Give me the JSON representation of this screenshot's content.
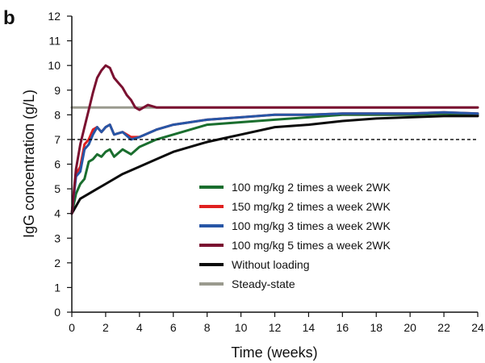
{
  "panel_label": "b",
  "chart_data": {
    "type": "line",
    "xlabel": "Time (weeks)",
    "ylabel": "IgG concentration (g/L)",
    "xlim": [
      0,
      24
    ],
    "ylim": [
      0,
      12
    ],
    "x_ticks": [
      0,
      2,
      4,
      6,
      8,
      10,
      12,
      14,
      16,
      18,
      20,
      22,
      24
    ],
    "y_ticks": [
      0,
      1,
      2,
      3,
      4,
      5,
      6,
      7,
      8,
      9,
      10,
      11,
      12
    ],
    "grid": false,
    "legend_position": "lower-right",
    "reference_line": {
      "y": 7,
      "style": "dashed",
      "color": "#000000"
    },
    "series": [
      {
        "name": "100 mg/kg 2 times a week 2WK",
        "color": "#1a6e2e",
        "points": [
          [
            0,
            4
          ],
          [
            0.25,
            4.8
          ],
          [
            0.5,
            5.2
          ],
          [
            0.75,
            5.4
          ],
          [
            1,
            6.1
          ],
          [
            1.25,
            6.2
          ],
          [
            1.5,
            6.4
          ],
          [
            1.75,
            6.3
          ],
          [
            2,
            6.5
          ],
          [
            2.25,
            6.6
          ],
          [
            2.5,
            6.3
          ],
          [
            3,
            6.6
          ],
          [
            3.5,
            6.4
          ],
          [
            4,
            6.7
          ],
          [
            5,
            7.0
          ],
          [
            6,
            7.2
          ],
          [
            8,
            7.6
          ],
          [
            10,
            7.7
          ],
          [
            12,
            7.8
          ],
          [
            14,
            7.9
          ],
          [
            16,
            8.0
          ],
          [
            18,
            8.0
          ],
          [
            20,
            8.0
          ],
          [
            22,
            8.05
          ],
          [
            24,
            8.0
          ]
        ]
      },
      {
        "name": "150 mg/kg 2 times a week 2WK",
        "color": "#e0201f",
        "points": [
          [
            0,
            4
          ],
          [
            0.25,
            5.6
          ],
          [
            0.5,
            5.9
          ],
          [
            0.75,
            6.8
          ],
          [
            1,
            7.0
          ],
          [
            1.25,
            7.4
          ],
          [
            1.5,
            7.5
          ],
          [
            1.75,
            7.3
          ],
          [
            2,
            7.5
          ],
          [
            2.25,
            7.6
          ],
          [
            2.5,
            7.2
          ],
          [
            3,
            7.3
          ],
          [
            3.5,
            7.1
          ],
          [
            4,
            7.1
          ],
          [
            5,
            7.4
          ],
          [
            6,
            7.6
          ],
          [
            8,
            7.8
          ],
          [
            10,
            7.9
          ],
          [
            12,
            8.0
          ],
          [
            14,
            8.0
          ],
          [
            16,
            8.05
          ],
          [
            18,
            8.05
          ],
          [
            20,
            8.05
          ],
          [
            22,
            8.1
          ],
          [
            24,
            8.05
          ]
        ]
      },
      {
        "name": "100 mg/kg 3 times a week 2WK",
        "color": "#2756a6",
        "points": [
          [
            0,
            4
          ],
          [
            0.25,
            5.5
          ],
          [
            0.5,
            5.7
          ],
          [
            0.75,
            6.6
          ],
          [
            1,
            6.8
          ],
          [
            1.25,
            7.2
          ],
          [
            1.5,
            7.5
          ],
          [
            1.75,
            7.3
          ],
          [
            2,
            7.5
          ],
          [
            2.25,
            7.6
          ],
          [
            2.5,
            7.2
          ],
          [
            3,
            7.3
          ],
          [
            3.5,
            7.0
          ],
          [
            4,
            7.1
          ],
          [
            5,
            7.4
          ],
          [
            6,
            7.6
          ],
          [
            8,
            7.8
          ],
          [
            10,
            7.9
          ],
          [
            12,
            8.0
          ],
          [
            14,
            8.0
          ],
          [
            16,
            8.05
          ],
          [
            18,
            8.05
          ],
          [
            20,
            8.05
          ],
          [
            22,
            8.1
          ],
          [
            24,
            8.05
          ]
        ]
      },
      {
        "name": "100 mg/kg 5 times a week 2WK",
        "color": "#7a1030",
        "points": [
          [
            0,
            4
          ],
          [
            0.25,
            5.8
          ],
          [
            0.5,
            6.8
          ],
          [
            0.75,
            7.5
          ],
          [
            1,
            8.2
          ],
          [
            1.25,
            8.9
          ],
          [
            1.5,
            9.5
          ],
          [
            1.75,
            9.8
          ],
          [
            2,
            10.0
          ],
          [
            2.25,
            9.9
          ],
          [
            2.5,
            9.5
          ],
          [
            2.75,
            9.3
          ],
          [
            3,
            9.1
          ],
          [
            3.25,
            8.8
          ],
          [
            3.5,
            8.6
          ],
          [
            3.75,
            8.3
          ],
          [
            4,
            8.2
          ],
          [
            4.5,
            8.4
          ],
          [
            5,
            8.3
          ],
          [
            6,
            8.3
          ],
          [
            8,
            8.3
          ],
          [
            10,
            8.3
          ],
          [
            12,
            8.3
          ],
          [
            14,
            8.3
          ],
          [
            16,
            8.3
          ],
          [
            18,
            8.3
          ],
          [
            20,
            8.3
          ],
          [
            22,
            8.3
          ],
          [
            24,
            8.3
          ]
        ]
      },
      {
        "name": "Without loading",
        "color": "#0a0a0a",
        "points": [
          [
            0,
            4
          ],
          [
            0.5,
            4.6
          ],
          [
            1,
            4.8
          ],
          [
            1.5,
            5.0
          ],
          [
            2,
            5.2
          ],
          [
            3,
            5.6
          ],
          [
            4,
            5.9
          ],
          [
            5,
            6.2
          ],
          [
            6,
            6.5
          ],
          [
            7,
            6.7
          ],
          [
            8,
            6.9
          ],
          [
            9,
            7.05
          ],
          [
            10,
            7.2
          ],
          [
            12,
            7.5
          ],
          [
            14,
            7.6
          ],
          [
            16,
            7.75
          ],
          [
            18,
            7.85
          ],
          [
            20,
            7.9
          ],
          [
            22,
            7.95
          ],
          [
            24,
            7.95
          ]
        ]
      },
      {
        "name": "Steady-state",
        "color": "#9a9a8e",
        "points": [
          [
            0,
            8.3
          ],
          [
            1,
            8.3
          ],
          [
            2,
            8.3
          ],
          [
            3,
            8.3
          ],
          [
            4,
            8.3
          ],
          [
            5,
            8.3
          ],
          [
            6,
            8.3
          ],
          [
            7,
            8.3
          ],
          [
            8,
            8.3
          ],
          [
            9,
            8.3
          ],
          [
            10,
            8.3
          ],
          [
            11,
            8.3
          ],
          [
            12,
            8.3
          ],
          [
            13,
            8.3
          ],
          [
            14,
            8.3
          ],
          [
            15,
            8.3
          ],
          [
            16,
            8.3
          ],
          [
            17,
            8.3
          ],
          [
            18,
            8.3
          ],
          [
            19,
            8.3
          ],
          [
            20,
            8.3
          ],
          [
            21,
            8.3
          ],
          [
            22,
            8.3
          ],
          [
            23,
            8.3
          ],
          [
            24,
            8.3
          ]
        ]
      }
    ]
  }
}
